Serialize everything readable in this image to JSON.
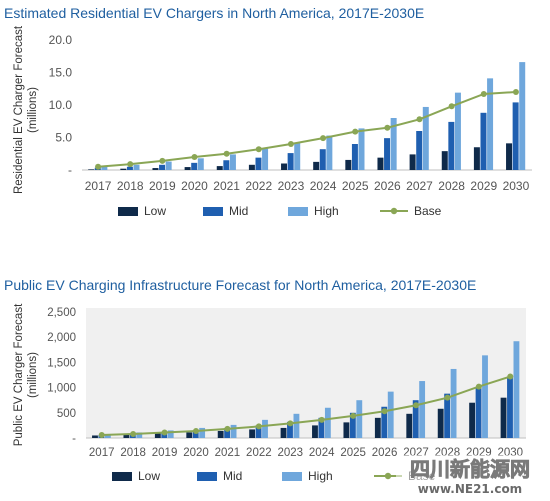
{
  "chart_data": [
    {
      "type": "bar",
      "title": "Estimated Residential EV Chargers in North America, 2017E-2030E",
      "xlabel": "",
      "ylabel": "Residential EV Charger Forecast (millions)",
      "ylim": [
        0,
        20
      ],
      "yticks": [
        "-",
        "5.0",
        "10.0",
        "15.0",
        "20.0"
      ],
      "grid": false,
      "plot_background": "#ffffff",
      "legend_position": "bottom",
      "categories": [
        "2017",
        "2018",
        "2019",
        "2020",
        "2021",
        "2022",
        "2023",
        "2024",
        "2025",
        "2026",
        "2027",
        "2028",
        "2029",
        "2030"
      ],
      "series": [
        {
          "name": "Low",
          "type": "bar",
          "color": "#0f2a4a",
          "values": [
            0.1,
            0.2,
            0.3,
            0.45,
            0.6,
            0.8,
            1.0,
            1.25,
            1.55,
            1.9,
            2.4,
            2.9,
            3.5,
            4.1
          ]
        },
        {
          "name": "Mid",
          "type": "bar",
          "color": "#1f5fb0",
          "values": [
            0.35,
            0.5,
            0.8,
            1.1,
            1.5,
            1.9,
            2.6,
            3.2,
            4.0,
            4.9,
            6.0,
            7.4,
            8.8,
            10.4
          ]
        },
        {
          "name": "High",
          "type": "bar",
          "color": "#6fa7dc",
          "values": [
            0.5,
            0.8,
            1.3,
            1.8,
            2.4,
            3.3,
            4.2,
            5.3,
            6.4,
            8.0,
            9.7,
            11.9,
            14.1,
            16.6
          ]
        },
        {
          "name": "Base",
          "type": "line",
          "color": "#8aa655",
          "values": [
            0.5,
            0.9,
            1.4,
            2.0,
            2.5,
            3.2,
            4.0,
            4.9,
            5.9,
            6.5,
            7.8,
            9.8,
            11.7,
            12.0
          ]
        }
      ]
    },
    {
      "type": "bar",
      "title": "Public EV Charging Infrastructure Forecast for North America, 2017E-2030E",
      "xlabel": "",
      "ylabel": "Public EV Charger Forecast (millions)",
      "ylim": [
        0,
        2500
      ],
      "yticks": [
        "-",
        "500",
        "1,000",
        "1,500",
        "2,000",
        "2,500"
      ],
      "grid": false,
      "plot_background": "#f0f0f0",
      "legend_position": "bottom",
      "categories": [
        "2017",
        "2018",
        "2019",
        "2020",
        "2021",
        "2022",
        "2023",
        "2024",
        "2025",
        "2026",
        "2027",
        "2028",
        "2029",
        "2030"
      ],
      "series": [
        {
          "name": "Low",
          "type": "bar",
          "color": "#0f2a4a",
          "values": [
            50,
            70,
            90,
            110,
            140,
            170,
            200,
            250,
            310,
            400,
            480,
            580,
            700,
            800
          ]
        },
        {
          "name": "Mid",
          "type": "bar",
          "color": "#1f5fb0",
          "values": [
            60,
            90,
            120,
            150,
            200,
            250,
            320,
            400,
            500,
            620,
            750,
            880,
            1020,
            1200
          ]
        },
        {
          "name": "High",
          "type": "bar",
          "color": "#6fa7dc",
          "values": [
            80,
            110,
            150,
            200,
            260,
            360,
            480,
            600,
            750,
            920,
            1130,
            1370,
            1640,
            1920
          ]
        },
        {
          "name": "Base",
          "type": "line",
          "color": "#8aa655",
          "values": [
            60,
            80,
            110,
            140,
            180,
            230,
            290,
            360,
            440,
            530,
            650,
            800,
            1020,
            1220
          ]
        }
      ]
    }
  ],
  "watermark": {
    "main": "四川新能源网",
    "sub": "www.NE21.com"
  }
}
